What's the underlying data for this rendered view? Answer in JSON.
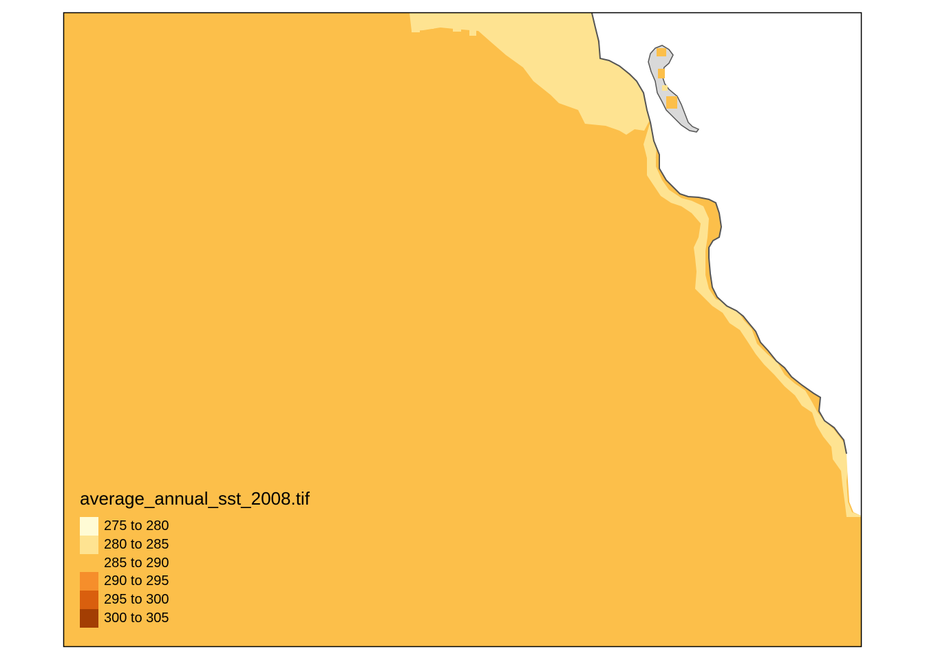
{
  "map": {
    "legend_title": "average_annual_sst_2008.tif",
    "classes": [
      {
        "label": "275 to 280",
        "color": "#FFFBD5"
      },
      {
        "label": "280 to 285",
        "color": "#FEE391"
      },
      {
        "label": "285 to 290",
        "color": "#FCBF4A"
      },
      {
        "label": "290 to 295",
        "color": "#F68E2B"
      },
      {
        "label": "295 to 300",
        "color": "#D95F0E"
      },
      {
        "label": "300 to 305",
        "color": "#A33E03"
      }
    ],
    "colors": {
      "ocean_main": "#FCBF4A",
      "ocean_cool": "#FEE391",
      "land": "#FFFFFF",
      "inland_water": "#D9D9D9",
      "coastline": "#555555",
      "frame": "#000000"
    }
  }
}
